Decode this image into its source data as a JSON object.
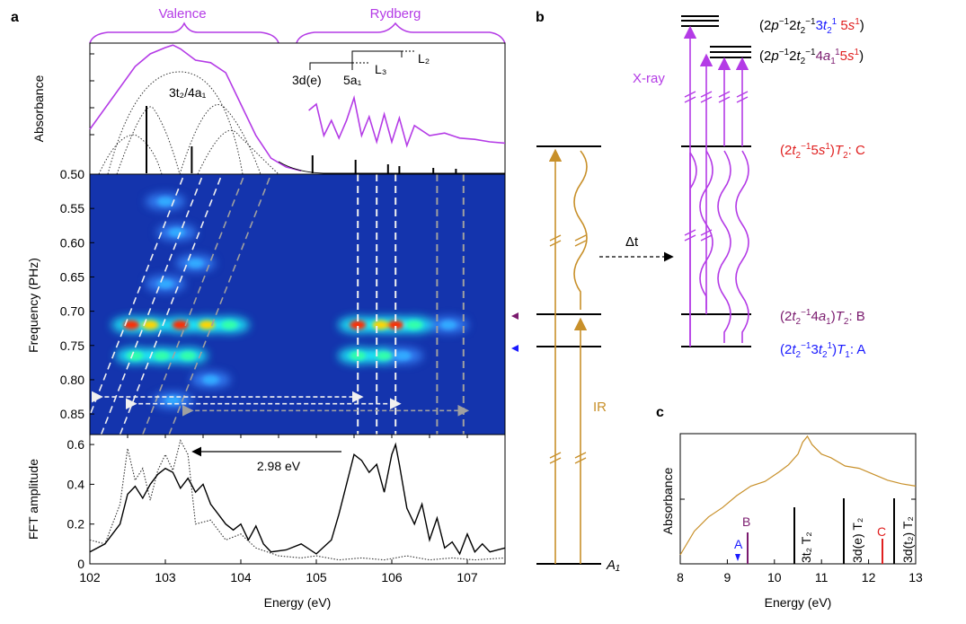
{
  "panel_labels": {
    "a": "a",
    "b": "b",
    "c": "c"
  },
  "colors": {
    "purple": "#b43be6",
    "gold": "#c8902a",
    "dark_purple": "#7a1a6e",
    "blue": "#1a1aff",
    "red": "#e02020",
    "dash_white": "#f0f0f0",
    "dash_gray": "#a0a0a0"
  },
  "panel_a": {
    "region_labels": {
      "valence": "Valence",
      "rydberg": "Rydberg"
    },
    "abs_ylabel": "Absorbance",
    "abs_annot": {
      "t3a4": "3t₂/4a₁",
      "d3e": "3d(e)",
      "a5": "5a₁",
      "L3": "L₃",
      "L2": "L₂"
    },
    "heat_ylabel": "Frequency (PHz)",
    "fft_ylabel": "FFT amplitude",
    "xlabel": "Energy (eV)",
    "arrow_label": "2.98 eV"
  },
  "chart_data": [
    {
      "type": "line",
      "panel": "a-top",
      "xlabel": "",
      "ylabel": "Absorbance",
      "xlim": [
        102,
        107.5
      ],
      "series": [
        {
          "x": [
            102.0,
            102.3,
            102.6,
            102.8,
            103.0,
            103.1,
            103.2,
            103.4,
            103.6,
            103.8,
            104.0,
            104.2,
            104.4,
            104.6,
            104.8
          ],
          "values": [
            0.35,
            0.6,
            0.85,
            0.95,
            1.0,
            1.02,
            0.99,
            0.9,
            0.88,
            0.8,
            0.55,
            0.3,
            0.12,
            0.05,
            0.02
          ]
        },
        {
          "x": [
            104.9,
            105.0,
            105.1,
            105.2,
            105.3,
            105.4,
            105.5,
            105.6,
            105.7,
            105.8,
            105.9,
            106.0,
            106.1,
            106.2,
            106.3,
            106.5,
            106.7,
            106.9,
            107.1,
            107.3,
            107.5
          ],
          "values": [
            0.5,
            0.55,
            0.3,
            0.42,
            0.28,
            0.42,
            0.6,
            0.3,
            0.45,
            0.25,
            0.47,
            0.25,
            0.44,
            0.22,
            0.38,
            0.3,
            0.32,
            0.28,
            0.27,
            0.25,
            0.24
          ]
        }
      ],
      "sticks_x": [
        102.75,
        103.35,
        104.95,
        105.52,
        105.95,
        106.1,
        106.55,
        106.85
      ]
    },
    {
      "type": "heatmap",
      "panel": "a-middle",
      "ylabel": "Frequency (PHz)",
      "xlim": [
        102,
        107.5
      ],
      "ylim": [
        0.5,
        0.88
      ],
      "yticks": [
        "0.50",
        "0.55",
        "0.60",
        "0.65",
        "0.70",
        "0.75",
        "0.80",
        "0.85"
      ],
      "hotspots": [
        {
          "x": 102.55,
          "y": 0.72,
          "v": 1.0
        },
        {
          "x": 102.8,
          "y": 0.72,
          "v": 0.8
        },
        {
          "x": 103.2,
          "y": 0.72,
          "v": 1.0
        },
        {
          "x": 103.55,
          "y": 0.72,
          "v": 0.9
        },
        {
          "x": 103.85,
          "y": 0.72,
          "v": 0.6
        },
        {
          "x": 105.55,
          "y": 0.72,
          "v": 1.0
        },
        {
          "x": 105.85,
          "y": 0.72,
          "v": 0.8
        },
        {
          "x": 106.05,
          "y": 0.72,
          "v": 1.0
        },
        {
          "x": 106.3,
          "y": 0.72,
          "v": 0.6
        },
        {
          "x": 106.75,
          "y": 0.72,
          "v": 0.4
        },
        {
          "x": 102.6,
          "y": 0.765,
          "v": 0.55
        },
        {
          "x": 102.95,
          "y": 0.765,
          "v": 0.6
        },
        {
          "x": 103.3,
          "y": 0.765,
          "v": 0.55
        },
        {
          "x": 105.55,
          "y": 0.765,
          "v": 0.7
        },
        {
          "x": 105.9,
          "y": 0.765,
          "v": 0.6
        },
        {
          "x": 106.15,
          "y": 0.765,
          "v": 0.5
        },
        {
          "x": 103.15,
          "y": 0.585,
          "v": 0.5
        },
        {
          "x": 103.0,
          "y": 0.54,
          "v": 0.35
        },
        {
          "x": 103.4,
          "y": 0.63,
          "v": 0.35
        },
        {
          "x": 103.0,
          "y": 0.66,
          "v": 0.3
        },
        {
          "x": 103.6,
          "y": 0.8,
          "v": 0.35
        },
        {
          "x": 103.1,
          "y": 0.83,
          "v": 0.3
        }
      ],
      "white_dashed_x": [
        105.55,
        105.8,
        106.05
      ],
      "gray_dashed_x": [
        106.6,
        106.95
      ],
      "diag_white_start": [
        101.9,
        102.15,
        102.4
      ],
      "diag_gray_start": [
        102.7,
        103.05
      ]
    },
    {
      "type": "line",
      "panel": "a-bottom",
      "ylabel": "FFT amplitude",
      "xlabel": "Energy (eV)",
      "xlim": [
        102,
        107.5
      ],
      "ylim": [
        0,
        0.65
      ],
      "yticks": [
        "0",
        "0.2",
        "0.4",
        "0.6"
      ],
      "xticks": [
        "102",
        "103",
        "104",
        "105",
        "106",
        "107"
      ],
      "series": [
        {
          "name": "solid",
          "x": [
            102.0,
            102.2,
            102.4,
            102.5,
            102.6,
            102.7,
            102.8,
            102.9,
            103.0,
            103.1,
            103.2,
            103.3,
            103.4,
            103.5,
            103.6,
            103.7,
            103.8,
            103.9,
            104.0,
            104.1,
            104.2,
            104.3,
            104.4,
            104.6,
            104.8,
            105.0,
            105.2,
            105.3,
            105.4,
            105.5,
            105.6,
            105.7,
            105.8,
            105.9,
            106.0,
            106.05,
            106.1,
            106.2,
            106.3,
            106.4,
            106.5,
            106.6,
            106.7,
            106.8,
            106.9,
            107.0,
            107.1,
            107.2,
            107.3,
            107.5
          ],
          "values": [
            0.06,
            0.1,
            0.2,
            0.35,
            0.39,
            0.33,
            0.4,
            0.45,
            0.48,
            0.46,
            0.38,
            0.43,
            0.36,
            0.4,
            0.3,
            0.25,
            0.2,
            0.17,
            0.2,
            0.12,
            0.19,
            0.1,
            0.06,
            0.07,
            0.1,
            0.05,
            0.12,
            0.25,
            0.4,
            0.55,
            0.52,
            0.46,
            0.5,
            0.36,
            0.55,
            0.6,
            0.5,
            0.28,
            0.2,
            0.3,
            0.12,
            0.23,
            0.08,
            0.11,
            0.05,
            0.15,
            0.06,
            0.1,
            0.06,
            0.08
          ]
        },
        {
          "name": "dotted",
          "x": [
            102.0,
            102.2,
            102.4,
            102.5,
            102.6,
            102.7,
            102.8,
            102.9,
            103.0,
            103.1,
            103.2,
            103.3,
            103.4,
            103.6,
            103.8,
            104.0,
            104.2,
            104.5,
            104.8,
            105.0,
            105.3,
            105.6,
            105.9,
            106.2,
            106.5,
            106.8,
            107.1,
            107.5
          ],
          "values": [
            0.12,
            0.1,
            0.3,
            0.58,
            0.42,
            0.48,
            0.32,
            0.47,
            0.55,
            0.47,
            0.62,
            0.55,
            0.2,
            0.22,
            0.12,
            0.15,
            0.08,
            0.04,
            0.03,
            0.04,
            0.02,
            0.03,
            0.02,
            0.04,
            0.02,
            0.03,
            0.02,
            0.03
          ]
        }
      ]
    },
    {
      "type": "line",
      "panel": "c",
      "xlabel": "Energy (eV)",
      "ylabel": "Absorbance",
      "xlim": [
        8,
        13
      ],
      "xticks": [
        "8",
        "9",
        "10",
        "11",
        "12",
        "13"
      ],
      "series": [
        {
          "x": [
            8.0,
            8.3,
            8.6,
            8.9,
            9.2,
            9.5,
            9.8,
            10.1,
            10.3,
            10.5,
            10.6,
            10.7,
            10.8,
            11.0,
            11.2,
            11.5,
            11.8,
            12.1,
            12.4,
            12.7,
            13.0
          ],
          "values": [
            0.0,
            0.2,
            0.32,
            0.4,
            0.5,
            0.58,
            0.62,
            0.7,
            0.76,
            0.85,
            0.95,
            1.0,
            0.93,
            0.85,
            0.82,
            0.75,
            0.73,
            0.68,
            0.63,
            0.6,
            0.58
          ]
        }
      ],
      "stick_labels": [
        "A",
        "B",
        "3t₂ T₂",
        "3d(e) T₂",
        "C",
        "3d(t₂) T₂"
      ]
    }
  ],
  "panel_b": {
    "states": {
      "A": "(2t₂⁻¹3t₂¹)T₁: A",
      "B": "(2t₂⁻¹4a₁)T₂: B",
      "C": "(2t₂⁻¹5s¹)T₂: C",
      "core1": "(2p⁻¹2t₂⁻¹3t₂¹5s¹)",
      "core2": "(2p⁻¹2t₂⁻¹4a₁¹5s¹)"
    },
    "ground": "A₁",
    "ir_label": "IR",
    "xray_label": "X-ray",
    "delay_label": "Δt"
  }
}
